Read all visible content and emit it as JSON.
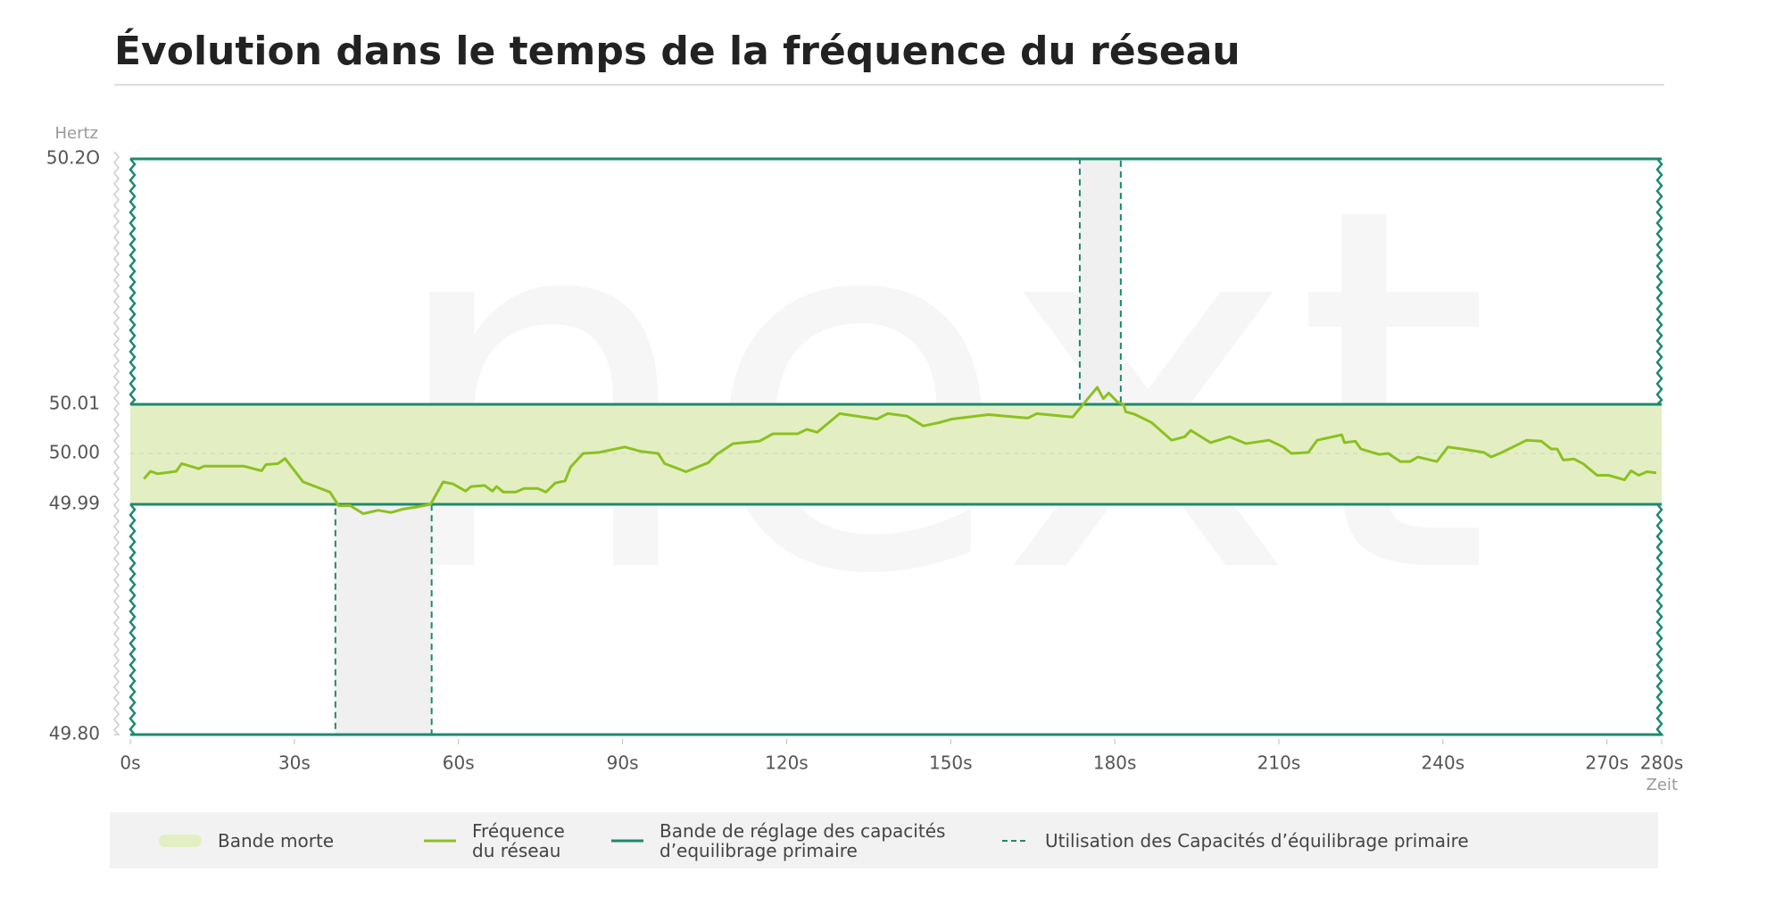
{
  "chart_data": {
    "type": "line",
    "title": "Évolution dans le temps de la fréquence du réseau",
    "watermark": "next",
    "ylabel": "Hertz",
    "xlabel": "Zeit",
    "xlim": [
      0,
      280
    ],
    "xticks": [
      {
        "value": 0,
        "label": "0s"
      },
      {
        "value": 30,
        "label": "30s"
      },
      {
        "value": 60,
        "label": "60s"
      },
      {
        "value": 90,
        "label": "90s"
      },
      {
        "value": 120,
        "label": "120s"
      },
      {
        "value": 150,
        "label": "150s"
      },
      {
        "value": 180,
        "label": "180s"
      },
      {
        "value": 210,
        "label": "210s"
      },
      {
        "value": 240,
        "label": "240s"
      },
      {
        "value": 270,
        "label": "270s"
      },
      {
        "value": 280,
        "label": "280s"
      }
    ],
    "ylim": [
      49.8,
      50.2
    ],
    "yticks": [
      {
        "value": 49.8,
        "label": "49.80"
      },
      49.99,
      {
        "value": 50.0,
        "label": "50.00"
      },
      50.01,
      {
        "value": 50.2,
        "label": "50.2O"
      }
    ],
    "grid": true,
    "dead_band": {
      "name": "Bande morte",
      "color": "#e3efc3",
      "range": [
        49.99,
        50.01
      ]
    },
    "primary_band": {
      "name": "Bande de réglage des capacités d’equilibrage primaire",
      "color": "#1d8a6e",
      "lower": [
        49.8,
        49.99
      ],
      "upper": [
        50.01,
        50.2
      ]
    },
    "activations": {
      "name": "Utilisation des Capacités d’équilibrage primaire",
      "color": "#1d8a6e",
      "fill": "#f0f0f0",
      "items": [
        {
          "x": [
            37.5,
            55.1
          ],
          "y": [
            49.8,
            49.99
          ]
        },
        {
          "x": [
            173.6,
            181.1
          ],
          "y": [
            50.01,
            50.2
          ]
        }
      ]
    },
    "series": [
      {
        "name": "Fréquence du réseau",
        "color": "#8dc021",
        "x": [
          2.5,
          3.7,
          5,
          8.4,
          9.4,
          12.5,
          13.5,
          20.7,
          24,
          24.8,
          27,
          28.3,
          31.6,
          36.5,
          38.1,
          40.2,
          42.6,
          45.3,
          47.7,
          49.8,
          52.5,
          54.9,
          57.2,
          59,
          61.3,
          62.3,
          64.8,
          66.2,
          67,
          68.2,
          70.5,
          72,
          74.5,
          76,
          77.7,
          79.5,
          80.5,
          82.8,
          85.7,
          90.4,
          93.4,
          96.5,
          97.7,
          101.6,
          105.7,
          107.2,
          110.2,
          115,
          117.5,
          122,
          123.7,
          125.6,
          129.7,
          136.5,
          138.5,
          142,
          145,
          148,
          150.2,
          156.9,
          164.1,
          165.7,
          172.3,
          175.4,
          176.8,
          177.9,
          178.9,
          180.5,
          181.6,
          182,
          183.6,
          186.7,
          190.4,
          192.8,
          193.9,
          197.5,
          201,
          204,
          208.2,
          210.8,
          212.3,
          215.4,
          217,
          221.5,
          222,
          224,
          225,
          228.3,
          230,
          232.2,
          234,
          235.4,
          238.9,
          240.9,
          243.5,
          247.5,
          248.8,
          250.8,
          255.3,
          258,
          259.8,
          260.9,
          262,
          264,
          265.6,
          268.2,
          270.3,
          273.2,
          274.4,
          275.8,
          277.3,
          279
        ],
        "values": [
          49.995,
          49.9965,
          49.996,
          49.9965,
          49.998,
          49.997,
          49.9975,
          49.9975,
          49.9966,
          49.9978,
          49.998,
          49.999,
          49.9944,
          49.9924,
          49.9888,
          49.9889,
          49.9823,
          49.9851,
          49.9832,
          49.986,
          49.9879,
          49.99,
          49.9944,
          49.994,
          49.9926,
          49.9935,
          49.9937,
          49.9926,
          49.9935,
          49.9924,
          49.9924,
          49.9931,
          49.9931,
          49.9924,
          49.9942,
          49.9946,
          49.9973,
          50.0,
          50.0002,
          50.0013,
          50.0004,
          50.0,
          49.998,
          49.9964,
          49.9982,
          49.9998,
          50.002,
          50.0025,
          50.004,
          50.004,
          50.0049,
          50.0043,
          50.0081,
          50.007,
          50.0081,
          50.0076,
          50.0056,
          50.0063,
          50.007,
          50.0079,
          50.0072,
          50.0081,
          50.0074,
          50.0161,
          50.0231,
          50.0144,
          50.0188,
          50.0118,
          50.01,
          50.0085,
          50.008,
          50.0063,
          50.0027,
          50.0034,
          50.0047,
          50.0022,
          50.0034,
          50.002,
          50.0027,
          50.0013,
          50.0,
          50.0002,
          50.0027,
          50.0038,
          50.0022,
          50.0025,
          50.0009,
          49.9998,
          50.0,
          49.9984,
          49.9984,
          49.9993,
          49.9984,
          50.0013,
          50.0009,
          50.0002,
          49.9993,
          50.0002,
          50.0027,
          50.0025,
          50.0009,
          50.0009,
          49.9987,
          49.9989,
          49.998,
          49.9957,
          49.9957,
          49.9948,
          49.9966,
          49.9957,
          49.9964,
          49.9962
        ]
      }
    ]
  }
}
